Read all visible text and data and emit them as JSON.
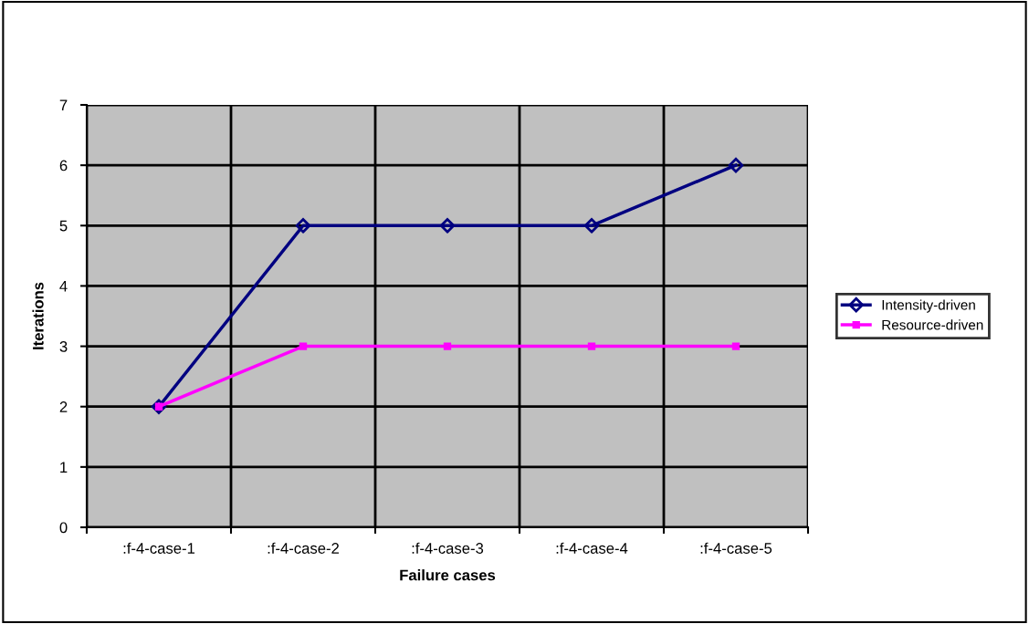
{
  "chart_data": {
    "type": "line",
    "xlabel": "Failure cases",
    "ylabel": "Iterations",
    "categories": [
      ":f-4-case-1",
      ":f-4-case-2",
      ":f-4-case-3",
      ":f-4-case-4",
      ":f-4-case-5"
    ],
    "series": [
      {
        "name": "Intensity-driven",
        "color": "#000080",
        "values": [
          2,
          5,
          5,
          5,
          6
        ],
        "marker": "diamond"
      },
      {
        "name": "Resource-driven",
        "color": "#ff00ff",
        "values": [
          2,
          3,
          3,
          3,
          3
        ],
        "marker": "square"
      }
    ],
    "ylim": [
      0,
      7
    ],
    "yticks": [
      0,
      1,
      2,
      3,
      4,
      5,
      6,
      7
    ],
    "grid": true,
    "legend": "right",
    "line_style": "solid"
  }
}
